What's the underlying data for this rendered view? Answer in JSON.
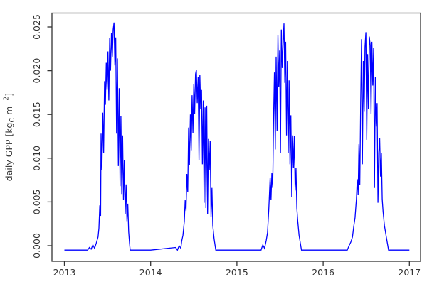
{
  "chart_data": {
    "type": "line",
    "title": "",
    "xlabel": "",
    "ylabel": "daily GPP [kg_C m^-2]",
    "ylabel_parts": {
      "pre": "daily GPP [kg",
      "sub": "C",
      "mid": " m",
      "sup": "−2",
      "post": "]"
    },
    "x_ticks": [
      "2013",
      "2014",
      "2015",
      "2016",
      "2017"
    ],
    "y_ticks": [
      "0.000",
      "0.005",
      "0.010",
      "0.015",
      "0.020",
      "0.025"
    ],
    "xlim": [
      2012.85,
      2017.15
    ],
    "ylim": [
      -0.001,
      0.0262
    ],
    "grid": false,
    "legend": null,
    "line_color": "#0000FF",
    "axis_color": "#333333",
    "series": [
      {
        "name": "daily GPP",
        "points": [
          [
            2013.0,
            -0.0005
          ],
          [
            2013.27,
            -0.0005
          ],
          [
            2013.29,
            -0.0002
          ],
          [
            2013.31,
            -0.0004
          ],
          [
            2013.33,
            0.0001
          ],
          [
            2013.35,
            -0.0003
          ],
          [
            2013.37,
            0.0003
          ],
          [
            2013.39,
            0.001
          ],
          [
            2013.4,
            0.002
          ],
          [
            2013.41,
            0.0046
          ],
          [
            2013.42,
            0.0034
          ],
          [
            2013.425,
            0.0128
          ],
          [
            2013.435,
            0.0086
          ],
          [
            2013.445,
            0.0152
          ],
          [
            2013.455,
            0.0106
          ],
          [
            2013.465,
            0.0188
          ],
          [
            2013.475,
            0.0161
          ],
          [
            2013.485,
            0.0209
          ],
          [
            2013.495,
            0.0178
          ],
          [
            2013.505,
            0.0222
          ],
          [
            2013.515,
            0.0166
          ],
          [
            2013.525,
            0.0237
          ],
          [
            2013.535,
            0.02
          ],
          [
            2013.545,
            0.0243
          ],
          [
            2013.555,
            0.0216
          ],
          [
            2013.565,
            0.0247
          ],
          [
            2013.575,
            0.0255
          ],
          [
            2013.585,
            0.0206
          ],
          [
            2013.595,
            0.0238
          ],
          [
            2013.605,
            0.0128
          ],
          [
            2013.615,
            0.0214
          ],
          [
            2013.625,
            0.0091
          ],
          [
            2013.635,
            0.018
          ],
          [
            2013.645,
            0.0068
          ],
          [
            2013.655,
            0.0148
          ],
          [
            2013.665,
            0.0059
          ],
          [
            2013.675,
            0.0126
          ],
          [
            2013.685,
            0.0052
          ],
          [
            2013.695,
            0.0098
          ],
          [
            2013.705,
            0.0036
          ],
          [
            2013.715,
            0.007
          ],
          [
            2013.725,
            0.0028
          ],
          [
            2013.735,
            0.0048
          ],
          [
            2013.745,
            0.0016
          ],
          [
            2013.755,
            0.0003
          ],
          [
            2013.762,
            -0.0005
          ],
          [
            2014.0,
            -0.0005
          ],
          [
            2014.29,
            -0.0002
          ],
          [
            2014.31,
            -0.0005
          ],
          [
            2014.33,
            0.0
          ],
          [
            2014.35,
            -0.0003
          ],
          [
            2014.36,
            0.0005
          ],
          [
            2014.375,
            0.0012
          ],
          [
            2014.39,
            0.0028
          ],
          [
            2014.4,
            0.0052
          ],
          [
            2014.41,
            0.004
          ],
          [
            2014.42,
            0.0082
          ],
          [
            2014.43,
            0.0061
          ],
          [
            2014.44,
            0.0135
          ],
          [
            2014.45,
            0.0092
          ],
          [
            2014.46,
            0.015
          ],
          [
            2014.47,
            0.0109
          ],
          [
            2014.48,
            0.0172
          ],
          [
            2014.49,
            0.0129
          ],
          [
            2014.5,
            0.0185
          ],
          [
            2014.51,
            0.0151
          ],
          [
            2014.52,
            0.0196
          ],
          [
            2014.53,
            0.0201
          ],
          [
            2014.54,
            0.0163
          ],
          [
            2014.55,
            0.0193
          ],
          [
            2014.56,
            0.0098
          ],
          [
            2014.57,
            0.0195
          ],
          [
            2014.58,
            0.0156
          ],
          [
            2014.59,
            0.0178
          ],
          [
            2014.6,
            0.0093
          ],
          [
            2014.61,
            0.0166
          ],
          [
            2014.62,
            0.0049
          ],
          [
            2014.63,
            0.0158
          ],
          [
            2014.64,
            0.0043
          ],
          [
            2014.65,
            0.016
          ],
          [
            2014.66,
            0.0036
          ],
          [
            2014.67,
            0.0122
          ],
          [
            2014.68,
            0.0086
          ],
          [
            2014.69,
            0.012
          ],
          [
            2014.7,
            0.0033
          ],
          [
            2014.71,
            0.0066
          ],
          [
            2014.72,
            0.0023
          ],
          [
            2014.735,
            0.0008
          ],
          [
            2014.755,
            -0.0005
          ],
          [
            2015.0,
            -0.0005
          ],
          [
            2015.28,
            -0.0005
          ],
          [
            2015.3,
            0.0001
          ],
          [
            2015.32,
            -0.0003
          ],
          [
            2015.34,
            0.0006
          ],
          [
            2015.355,
            0.0015
          ],
          [
            2015.37,
            0.0042
          ],
          [
            2015.385,
            0.0078
          ],
          [
            2015.395,
            0.0052
          ],
          [
            2015.405,
            0.0083
          ],
          [
            2015.415,
            0.0066
          ],
          [
            2015.425,
            0.0146
          ],
          [
            2015.435,
            0.0198
          ],
          [
            2015.445,
            0.011
          ],
          [
            2015.455,
            0.0216
          ],
          [
            2015.465,
            0.0131
          ],
          [
            2015.475,
            0.0241
          ],
          [
            2015.485,
            0.0181
          ],
          [
            2015.495,
            0.0223
          ],
          [
            2015.505,
            0.0106
          ],
          [
            2015.515,
            0.0247
          ],
          [
            2015.525,
            0.0203
          ],
          [
            2015.535,
            0.0231
          ],
          [
            2015.545,
            0.0254
          ],
          [
            2015.555,
            0.0186
          ],
          [
            2015.565,
            0.0233
          ],
          [
            2015.575,
            0.0126
          ],
          [
            2015.585,
            0.0211
          ],
          [
            2015.595,
            0.0106
          ],
          [
            2015.605,
            0.0189
          ],
          [
            2015.615,
            0.0093
          ],
          [
            2015.625,
            0.0149
          ],
          [
            2015.635,
            0.0056
          ],
          [
            2015.645,
            0.0126
          ],
          [
            2015.655,
            0.0089
          ],
          [
            2015.665,
            0.0125
          ],
          [
            2015.675,
            0.0063
          ],
          [
            2015.685,
            0.0089
          ],
          [
            2015.695,
            0.0043
          ],
          [
            2015.705,
            0.0029
          ],
          [
            2015.72,
            0.0012
          ],
          [
            2015.748,
            -0.0005
          ],
          [
            2016.0,
            -0.0005
          ],
          [
            2016.28,
            -0.0005
          ],
          [
            2016.3,
            0.0
          ],
          [
            2016.32,
            0.0004
          ],
          [
            2016.34,
            0.001
          ],
          [
            2016.355,
            0.0022
          ],
          [
            2016.37,
            0.0032
          ],
          [
            2016.385,
            0.0053
          ],
          [
            2016.395,
            0.0076
          ],
          [
            2016.405,
            0.0058
          ],
          [
            2016.415,
            0.0116
          ],
          [
            2016.425,
            0.0069
          ],
          [
            2016.435,
            0.0163
          ],
          [
            2016.445,
            0.0236
          ],
          [
            2016.455,
            0.0093
          ],
          [
            2016.465,
            0.0211
          ],
          [
            2016.475,
            0.0153
          ],
          [
            2016.485,
            0.0227
          ],
          [
            2016.495,
            0.0244
          ],
          [
            2016.505,
            0.0121
          ],
          [
            2016.515,
            0.0219
          ],
          [
            2016.525,
            0.0156
          ],
          [
            2016.535,
            0.0239
          ],
          [
            2016.545,
            0.0229
          ],
          [
            2016.555,
            0.0151
          ],
          [
            2016.565,
            0.0233
          ],
          [
            2016.575,
            0.0183
          ],
          [
            2016.585,
            0.0226
          ],
          [
            2016.595,
            0.0066
          ],
          [
            2016.605,
            0.0193
          ],
          [
            2016.615,
            0.0136
          ],
          [
            2016.625,
            0.0163
          ],
          [
            2016.635,
            0.0049
          ],
          [
            2016.645,
            0.0106
          ],
          [
            2016.655,
            0.0123
          ],
          [
            2016.665,
            0.0079
          ],
          [
            2016.675,
            0.0106
          ],
          [
            2016.685,
            0.0053
          ],
          [
            2016.695,
            0.0039
          ],
          [
            2016.71,
            0.0023
          ],
          [
            2016.73,
            0.0011
          ],
          [
            2016.758,
            -0.0005
          ],
          [
            2017.0,
            -0.0005
          ]
        ]
      }
    ]
  }
}
